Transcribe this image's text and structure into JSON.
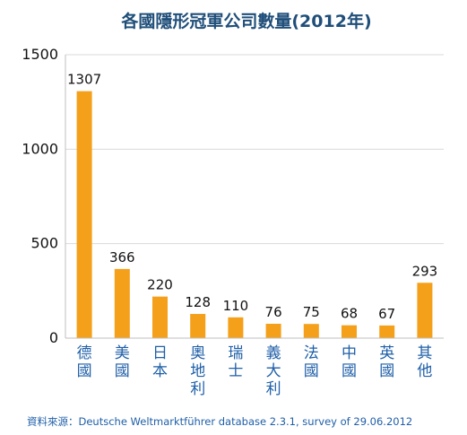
{
  "chart_data": {
    "type": "bar",
    "title": "各國隱形冠軍公司數量(2012年)",
    "categories": [
      "德國",
      "美國",
      "日本",
      "奧地利",
      "瑞士",
      "義大利",
      "法國",
      "中國",
      "英國",
      "其他"
    ],
    "values": [
      1307,
      366,
      220,
      128,
      110,
      76,
      75,
      68,
      67,
      293
    ],
    "ylim": [
      0,
      1500
    ],
    "yticks": [
      0,
      500,
      1000,
      1500
    ],
    "xlabel": "",
    "ylabel": "",
    "grid": true,
    "bar_color": "#f5a01a"
  },
  "source": "資料來源：Deutsche Weltmarktführer database 2.3.1, survey of 29.06.2012"
}
